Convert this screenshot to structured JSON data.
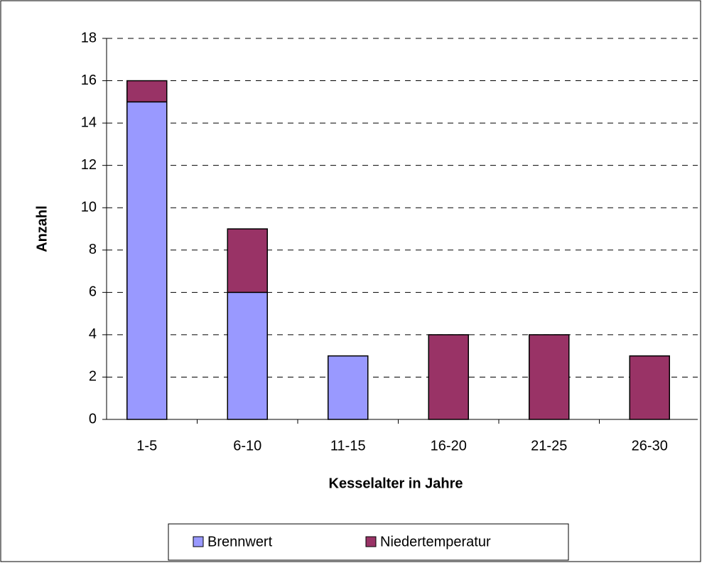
{
  "chart_data": {
    "type": "stacked_bar",
    "categories": [
      "1-5",
      "6-10",
      "11-15",
      "16-20",
      "21-25",
      "26-30"
    ],
    "series": [
      {
        "name": "Brennwert",
        "color": "#9999ff",
        "values": [
          15,
          6,
          3,
          0,
          0,
          0
        ]
      },
      {
        "name": "Niedertemperatur",
        "color": "#993366",
        "values": [
          1,
          3,
          0,
          4,
          4,
          3
        ]
      }
    ],
    "x_label": "Kesselalter in Jahre",
    "y_label": "Anzahl",
    "ylim": [
      0,
      18
    ],
    "yticks": [
      0,
      2,
      4,
      6,
      8,
      10,
      12,
      14,
      16,
      18
    ],
    "grid": true,
    "legend": "bottom"
  }
}
